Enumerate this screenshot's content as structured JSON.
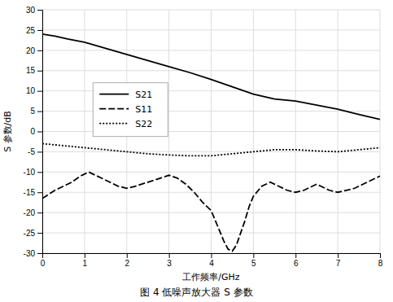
{
  "chart_data": {
    "type": "line",
    "title": "图 4  低噪声放大器 S 参数",
    "xlabel": "工作频率/GHz",
    "ylabel": "S 参数/dB",
    "xlim": [
      0,
      8
    ],
    "ylim": [
      -30,
      30
    ],
    "xticks": [
      0,
      1,
      2,
      3,
      4,
      5,
      6,
      7,
      8
    ],
    "yticks": [
      -30,
      -25,
      -20,
      -15,
      -10,
      -5,
      0,
      5,
      10,
      15,
      20,
      25,
      30
    ],
    "grid": true,
    "legend": "left",
    "series": [
      {
        "name": "S21",
        "color": "#000000",
        "line_style": "solid",
        "x": [
          0,
          0.3,
          0.6,
          1.0,
          1.5,
          2.0,
          2.5,
          3.0,
          3.5,
          4.0,
          4.5,
          5.0,
          5.5,
          6.0,
          6.5,
          7.0,
          7.5,
          8.0
        ],
        "values": [
          24.0,
          23.5,
          22.8,
          22.0,
          20.5,
          19.0,
          17.5,
          16.0,
          14.5,
          12.8,
          11.0,
          9.2,
          8.0,
          7.5,
          6.5,
          5.5,
          4.2,
          3.0
        ]
      },
      {
        "name": "S11",
        "color": "#000000",
        "line_style": "dashed",
        "x": [
          0,
          0.15,
          0.3,
          0.5,
          0.7,
          0.9,
          1.0,
          1.1,
          1.2,
          1.4,
          1.6,
          1.8,
          2.0,
          2.2,
          2.5,
          2.8,
          3.0,
          3.2,
          3.4,
          3.6,
          3.8,
          4.0,
          4.1,
          4.2,
          4.3,
          4.4,
          4.5,
          4.6,
          4.7,
          4.8,
          4.9,
          5.0,
          5.2,
          5.4,
          5.6,
          5.8,
          6.0,
          6.2,
          6.4,
          6.5,
          6.6,
          6.8,
          7.0,
          7.2,
          7.4,
          7.6,
          7.8,
          8.0
        ],
        "values": [
          -16.5,
          -15.5,
          -14.5,
          -13.5,
          -12.5,
          -11.0,
          -10.5,
          -10.0,
          -10.5,
          -11.5,
          -12.5,
          -13.5,
          -14.0,
          -13.5,
          -12.5,
          -11.5,
          -10.8,
          -11.5,
          -13.0,
          -15.0,
          -17.5,
          -19.5,
          -22.0,
          -24.5,
          -27.0,
          -29.0,
          -29.5,
          -28.0,
          -25.0,
          -22.0,
          -18.5,
          -16.0,
          -13.5,
          -12.5,
          -13.5,
          -14.5,
          -15.0,
          -14.5,
          -13.5,
          -13.0,
          -13.5,
          -14.5,
          -15.0,
          -14.5,
          -14.0,
          -13.0,
          -12.0,
          -11.0
        ]
      },
      {
        "name": "S22",
        "color": "#000000",
        "line_style": "dotted",
        "x": [
          0,
          0.5,
          1.0,
          1.5,
          2.0,
          2.5,
          3.0,
          3.5,
          4.0,
          4.5,
          5.0,
          5.5,
          6.0,
          6.5,
          7.0,
          7.5,
          8.0
        ],
        "values": [
          -3.0,
          -3.5,
          -4.0,
          -4.5,
          -5.0,
          -5.5,
          -5.8,
          -6.0,
          -6.0,
          -5.5,
          -5.0,
          -4.5,
          -4.5,
          -4.8,
          -5.0,
          -4.5,
          -4.0
        ]
      }
    ]
  }
}
